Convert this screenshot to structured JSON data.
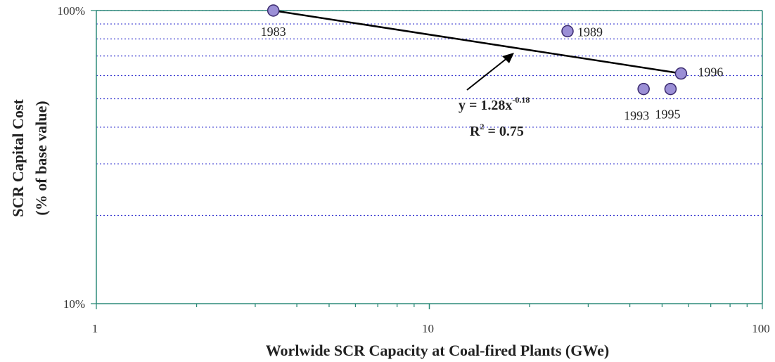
{
  "chart_data": {
    "type": "scatter",
    "title": "",
    "xlabel": "Worlwide SCR Capacity at Coal-fired Plants (GWe)",
    "ylabel_lines": [
      "SCR Capital Cost",
      "(% of base value)"
    ],
    "x_scale": "log",
    "y_scale": "log",
    "xlim": [
      1,
      100
    ],
    "ylim": [
      10,
      100
    ],
    "x_tick_labels": [
      "1",
      "10",
      "100"
    ],
    "y_tick_labels": [
      "10%",
      "100%"
    ],
    "grid": "horizontal dotted",
    "points": [
      {
        "label": "1983",
        "x": 3.4,
        "y": 100
      },
      {
        "label": "1989",
        "x": 26,
        "y": 85
      },
      {
        "label": "1993",
        "x": 44,
        "y": 54
      },
      {
        "label": "1995",
        "x": 53,
        "y": 54
      },
      {
        "label": "1996",
        "x": 57,
        "y": 61
      }
    ],
    "trendline": {
      "equation_text": "y = 1.28x",
      "exponent_text": "-0.18",
      "r2_text": "R",
      "r2_sup": "2",
      "r2_value_text": " = 0.75",
      "x_range": [
        3.4,
        57
      ],
      "y_range": [
        100,
        61
      ]
    },
    "colors": {
      "axis": "#2e8b7a",
      "grid": "#3a3ad0",
      "marker_fill": "#9b8fd6",
      "marker_stroke": "#3a2a6e",
      "trendline": "#000000"
    }
  }
}
